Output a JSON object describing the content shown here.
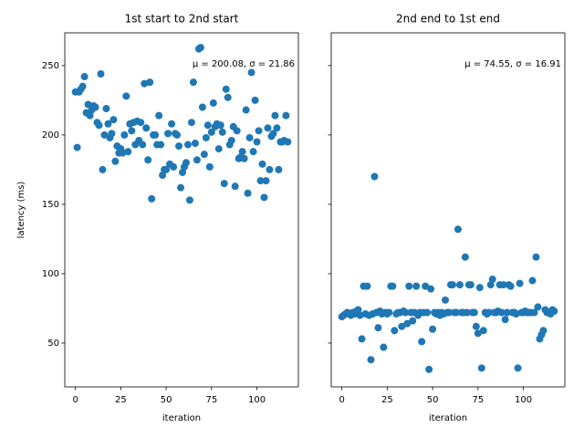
{
  "chart_data": [
    {
      "type": "scatter",
      "title": "1st start to 2nd start",
      "xlabel": "iteration",
      "ylabel": "latency (ms)",
      "annotation": "μ = 200.08, σ = 21.86",
      "color": "#1f77b4",
      "xlim": [
        -5.85,
        122.85
      ],
      "xticks": [
        0,
        25,
        50,
        75,
        100
      ],
      "ylim": [
        18.4,
        273.6
      ],
      "yticks": [
        50,
        100,
        150,
        200,
        250
      ],
      "ytick_labels": true,
      "x": [
        0,
        1,
        2,
        3,
        4,
        5,
        6,
        7,
        8,
        9,
        10,
        11,
        12,
        13,
        14,
        15,
        16,
        17,
        18,
        19,
        20,
        21,
        22,
        23,
        24,
        25,
        26,
        27,
        28,
        29,
        30,
        31,
        32,
        33,
        34,
        35,
        36,
        37,
        38,
        39,
        40,
        41,
        42,
        43,
        44,
        45,
        46,
        47,
        48,
        49,
        50,
        51,
        52,
        53,
        54,
        55,
        56,
        57,
        58,
        59,
        60,
        61,
        62,
        63,
        64,
        65,
        66,
        67,
        68,
        69,
        70,
        71,
        72,
        73,
        74,
        75,
        76,
        77,
        78,
        79,
        80,
        81,
        82,
        83,
        84,
        85,
        86,
        87,
        88,
        89,
        90,
        91,
        92,
        93,
        94,
        95,
        96,
        97,
        98,
        99,
        100,
        101,
        102,
        103,
        104,
        105,
        106,
        107,
        108,
        109,
        110,
        111,
        112,
        113,
        114,
        115,
        116,
        117
      ],
      "values": [
        231,
        191,
        231,
        233,
        235,
        242,
        216,
        222,
        214,
        218,
        221,
        220,
        209,
        207,
        244,
        175,
        200,
        219,
        208,
        198,
        201,
        211,
        181,
        192,
        187,
        190,
        187,
        200,
        228,
        188,
        208,
        203,
        209,
        193,
        210,
        196,
        209,
        193,
        237,
        205,
        182,
        238,
        154,
        200,
        200,
        193,
        214,
        193,
        171,
        175,
        175,
        201,
        179,
        208,
        177,
        201,
        200,
        192,
        162,
        173,
        177,
        180,
        193,
        153,
        209,
        238,
        194,
        182,
        262,
        263,
        220,
        186,
        198,
        207,
        177,
        202,
        223,
        206,
        208,
        190,
        207,
        202,
        165,
        233,
        227,
        193,
        196,
        206,
        163,
        203,
        183,
        184,
        188,
        183,
        218,
        158,
        198,
        245,
        188,
        225,
        195,
        203,
        167,
        179,
        155,
        167,
        205,
        175,
        199,
        201,
        214,
        205,
        175,
        195,
        195,
        196,
        214,
        195
      ]
    },
    {
      "type": "scatter",
      "title": "2nd end to 1st end",
      "xlabel": "iteration",
      "annotation": "μ = 74.55, σ = 16.91",
      "color": "#1f77b4",
      "xlim": [
        -5.85,
        122.85
      ],
      "xticks": [
        0,
        25,
        50,
        75,
        100
      ],
      "ylim": [
        18.4,
        273.6
      ],
      "yticks": [
        50,
        100,
        150,
        200,
        250
      ],
      "ytick_labels": false,
      "x": [
        0,
        1,
        2,
        3,
        4,
        5,
        6,
        7,
        8,
        9,
        10,
        11,
        12,
        13,
        14,
        15,
        16,
        17,
        18,
        19,
        20,
        21,
        22,
        23,
        24,
        25,
        26,
        27,
        28,
        29,
        30,
        31,
        32,
        33,
        34,
        35,
        36,
        37,
        38,
        39,
        40,
        41,
        42,
        43,
        44,
        45,
        46,
        47,
        48,
        49,
        50,
        51,
        52,
        53,
        54,
        55,
        56,
        57,
        58,
        59,
        60,
        61,
        62,
        63,
        64,
        65,
        66,
        67,
        68,
        69,
        70,
        71,
        72,
        73,
        74,
        75,
        76,
        77,
        78,
        79,
        80,
        81,
        82,
        83,
        84,
        85,
        86,
        87,
        88,
        89,
        90,
        91,
        92,
        93,
        94,
        95,
        96,
        97,
        98,
        99,
        100,
        101,
        102,
        103,
        104,
        105,
        106,
        107,
        108,
        109,
        110,
        111,
        112,
        113,
        114,
        115,
        116,
        117
      ],
      "values": [
        69,
        70,
        71,
        72,
        71,
        70,
        72,
        71,
        73,
        74,
        70,
        53,
        91,
        71,
        91,
        70,
        38,
        71,
        170,
        72,
        61,
        73,
        71,
        47,
        72,
        71,
        72,
        91,
        91,
        59,
        71,
        72,
        72,
        62,
        73,
        72,
        64,
        91,
        72,
        66,
        72,
        91,
        70,
        72,
        51,
        72,
        91,
        72,
        31,
        89,
        60,
        72,
        71,
        72,
        70,
        72,
        71,
        81,
        72,
        72,
        92,
        92,
        72,
        72,
        132,
        92,
        72,
        72,
        112,
        72,
        92,
        92,
        72,
        72,
        62,
        57,
        90,
        32,
        59,
        72,
        71,
        72,
        92,
        96,
        72,
        72,
        73,
        92,
        72,
        92,
        67,
        72,
        92,
        91,
        72,
        72,
        71,
        32,
        93,
        72,
        72,
        73,
        72,
        72,
        72,
        95,
        72,
        112,
        76,
        53,
        56,
        59,
        74,
        72,
        72,
        71,
        74,
        73
      ]
    }
  ]
}
